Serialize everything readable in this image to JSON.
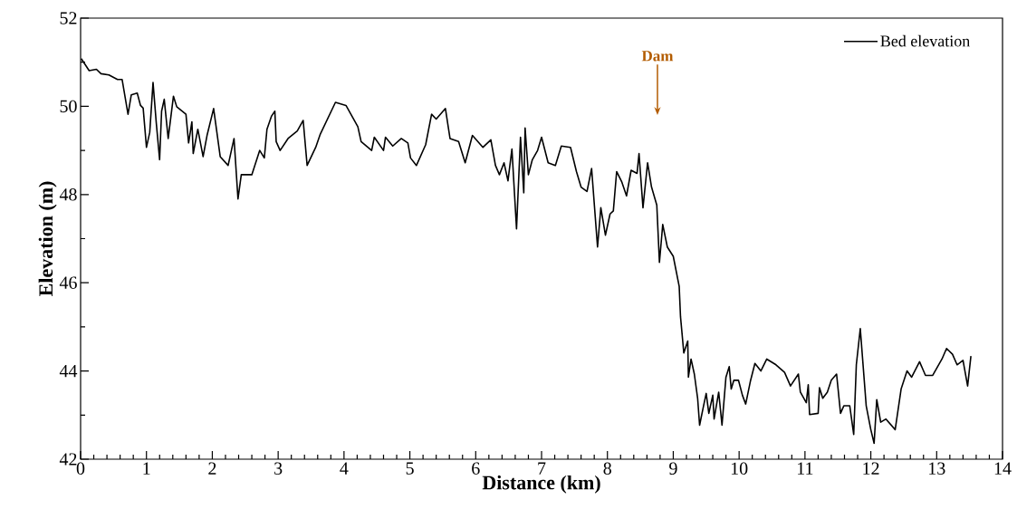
{
  "chart_data": {
    "type": "line",
    "xlabel": "Distance (km)",
    "ylabel": "Elevation (m)",
    "xlim": [
      0,
      14
    ],
    "ylim": [
      42,
      52
    ],
    "xticks": [
      0,
      1,
      2,
      3,
      4,
      5,
      6,
      7,
      8,
      9,
      10,
      11,
      12,
      13,
      14
    ],
    "yticks": [
      42,
      44,
      46,
      48,
      50,
      52
    ],
    "legend": "top right",
    "grid": false,
    "marker": "none",
    "line_style": "solid",
    "ref_lines": [
      {
        "axis": "x",
        "value": 8.76,
        "label": "Dam",
        "color": "#b35c00"
      }
    ],
    "series": [
      {
        "name": "Bed elevation",
        "color": "#000000",
        "x": [
          0.01,
          0.13,
          0.24,
          0.31,
          0.43,
          0.56,
          0.63,
          0.72,
          0.77,
          0.86,
          0.91,
          0.95,
          1.0,
          1.05,
          1.1,
          1.15,
          1.2,
          1.23,
          1.27,
          1.33,
          1.41,
          1.46,
          1.6,
          1.64,
          1.69,
          1.71,
          1.78,
          1.86,
          1.92,
          2.02,
          2.12,
          2.24,
          2.33,
          2.39,
          2.44,
          2.6,
          2.72,
          2.79,
          2.83,
          2.9,
          2.95,
          2.97,
          3.03,
          3.15,
          3.29,
          3.38,
          3.44,
          3.57,
          3.64,
          3.87,
          4.03,
          4.21,
          4.26,
          4.42,
          4.46,
          4.6,
          4.63,
          4.74,
          4.87,
          4.97,
          5.01,
          5.1,
          5.24,
          5.33,
          5.4,
          5.54,
          5.61,
          5.74,
          5.84,
          5.95,
          6.11,
          6.23,
          6.3,
          6.36,
          6.43,
          6.49,
          6.55,
          6.62,
          6.68,
          6.73,
          6.75,
          6.8,
          6.86,
          6.94,
          7.0,
          7.1,
          7.21,
          7.3,
          7.44,
          7.53,
          7.6,
          7.69,
          7.76,
          7.85,
          7.9,
          7.97,
          8.04,
          8.09,
          8.14,
          8.22,
          8.29,
          8.36,
          8.45,
          8.48,
          8.54,
          8.61,
          8.67,
          8.75,
          8.79,
          8.84,
          8.91,
          9.0,
          9.09,
          9.11,
          9.16,
          9.22,
          9.23,
          9.27,
          9.32,
          9.37,
          9.4,
          9.46,
          9.5,
          9.54,
          9.6,
          9.62,
          9.69,
          9.74,
          9.8,
          9.85,
          9.88,
          9.92,
          9.99,
          10.05,
          10.1,
          10.17,
          10.24,
          10.33,
          10.42,
          10.56,
          10.69,
          10.78,
          10.9,
          10.93,
          11.02,
          11.05,
          11.07,
          11.2,
          11.22,
          11.27,
          11.34,
          11.4,
          11.48,
          11.54,
          11.59,
          11.68,
          11.74,
          11.78,
          11.84,
          11.93,
          12.0,
          12.05,
          12.09,
          12.15,
          12.23,
          12.37,
          12.46,
          12.55,
          12.62,
          12.74,
          12.83,
          12.94,
          13.08,
          13.15,
          13.24,
          13.31,
          13.4,
          13.47,
          13.52
        ],
        "values": [
          51.08,
          50.81,
          50.84,
          50.74,
          50.71,
          50.61,
          50.61,
          49.82,
          50.26,
          50.3,
          50.02,
          49.96,
          49.07,
          49.41,
          50.54,
          49.61,
          48.79,
          49.89,
          50.16,
          49.27,
          50.23,
          49.99,
          49.82,
          49.17,
          49.65,
          48.93,
          49.48,
          48.86,
          49.34,
          49.95,
          48.86,
          48.66,
          49.27,
          47.9,
          48.45,
          48.45,
          49.0,
          48.83,
          49.48,
          49.78,
          49.89,
          49.2,
          49.0,
          49.27,
          49.44,
          49.68,
          48.66,
          49.07,
          49.37,
          50.09,
          50.02,
          49.54,
          49.2,
          49.0,
          49.3,
          49.0,
          49.3,
          49.1,
          49.27,
          49.17,
          48.83,
          48.66,
          49.13,
          49.82,
          49.71,
          49.95,
          49.27,
          49.2,
          48.72,
          49.34,
          49.07,
          49.24,
          48.66,
          48.45,
          48.72,
          48.31,
          49.03,
          47.22,
          49.3,
          48.04,
          49.51,
          48.45,
          48.79,
          49.0,
          49.3,
          48.72,
          48.66,
          49.1,
          49.07,
          48.52,
          48.17,
          48.07,
          48.59,
          46.81,
          47.7,
          47.08,
          47.56,
          47.63,
          48.52,
          48.28,
          47.97,
          48.55,
          48.48,
          48.93,
          47.7,
          48.72,
          48.17,
          47.76,
          46.46,
          47.32,
          46.81,
          46.6,
          45.92,
          45.23,
          44.41,
          44.68,
          43.86,
          44.27,
          43.93,
          43.38,
          42.77,
          43.21,
          43.49,
          43.04,
          43.45,
          42.91,
          43.52,
          42.77,
          43.86,
          44.1,
          43.59,
          43.79,
          43.79,
          43.45,
          43.25,
          43.76,
          44.17,
          44.0,
          44.27,
          44.14,
          43.97,
          43.66,
          43.93,
          43.52,
          43.28,
          43.69,
          43.01,
          43.04,
          43.62,
          43.38,
          43.52,
          43.79,
          43.93,
          43.04,
          43.21,
          43.21,
          42.56,
          44.14,
          44.96,
          43.21,
          42.67,
          42.36,
          43.35,
          42.84,
          42.91,
          42.67,
          43.59,
          44.0,
          43.86,
          44.21,
          43.9,
          43.9,
          44.27,
          44.51,
          44.38,
          44.14,
          44.24,
          43.66,
          44.34
        ]
      }
    ]
  }
}
